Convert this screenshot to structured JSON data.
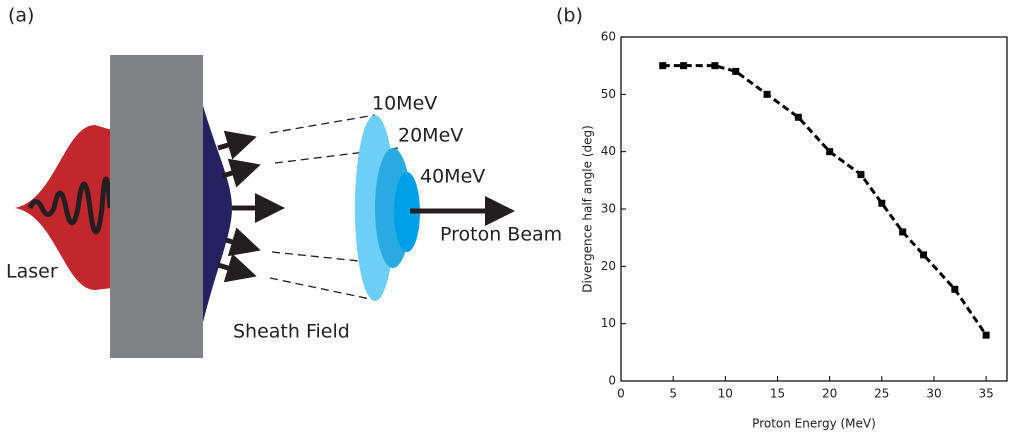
{
  "diagram": {
    "panel_label": "(a)",
    "labels": {
      "e10": "10MeV",
      "e20": "20MeV",
      "e40": "40MeV",
      "beam": "Proton Beam",
      "laser": "Laser",
      "sheath": "Sheath Field"
    }
  },
  "chart_data": {
    "type": "line",
    "panel_label": "(b)",
    "x_label": "Proton Energy (MeV)",
    "y_label": "Divergence half angle (deg)",
    "x": [
      4,
      6,
      9,
      11,
      14,
      17,
      20,
      23,
      25,
      27,
      29,
      32,
      35
    ],
    "series": [
      {
        "color": "#000000",
        "values": [
          55,
          55,
          55,
          54,
          50,
          46,
          40,
          36,
          31,
          26,
          22,
          16,
          8
        ]
      }
    ],
    "xlim": [
      0,
      37
    ],
    "ylim": [
      0,
      60
    ],
    "xticks": [
      0,
      5,
      10,
      15,
      20,
      25,
      30,
      35
    ],
    "yticks": [
      0,
      10,
      20,
      30,
      40,
      50,
      60
    ]
  }
}
